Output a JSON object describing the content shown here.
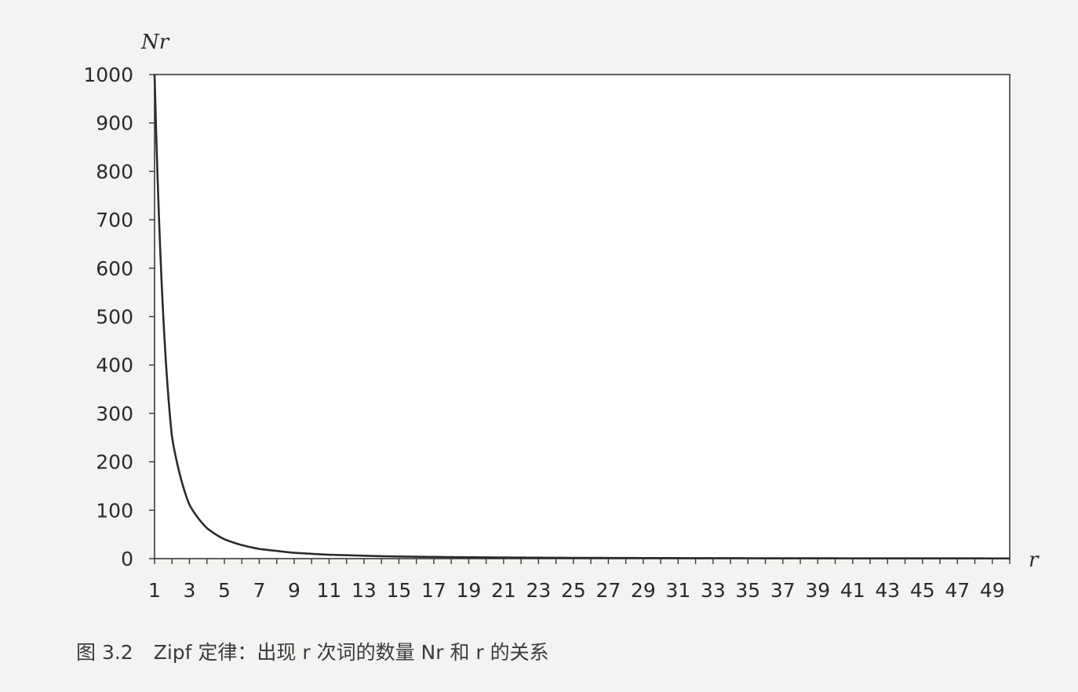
{
  "chart_data": {
    "type": "line",
    "title": "",
    "xlabel": "r",
    "ylabel": "Nr",
    "x": [
      1,
      2,
      3,
      4,
      5,
      6,
      7,
      8,
      9,
      10,
      11,
      12,
      13,
      14,
      15,
      16,
      17,
      18,
      19,
      20,
      21,
      22,
      23,
      24,
      25,
      26,
      27,
      28,
      29,
      30,
      31,
      32,
      33,
      34,
      35,
      36,
      37,
      38,
      39,
      40,
      41,
      42,
      43,
      44,
      45,
      46,
      47,
      48,
      49,
      50
    ],
    "series": [
      {
        "values": [
          1000,
          250,
          111,
          63,
          40,
          28,
          20,
          16,
          12,
          10,
          8,
          7,
          6,
          5,
          4.4,
          3.9,
          3.5,
          3.1,
          2.8,
          2.5,
          2.3,
          2.1,
          1.9,
          1.7,
          1.6,
          1.5,
          1.4,
          1.3,
          1.2,
          1.1,
          1.04,
          0.98,
          0.92,
          0.87,
          0.82,
          0.77,
          0.73,
          0.69,
          0.66,
          0.63,
          0.6,
          0.57,
          0.54,
          0.52,
          0.5,
          0.48,
          0.46,
          0.44,
          0.42,
          0.4
        ]
      }
    ],
    "xticks": [
      "1",
      "3",
      "5",
      "7",
      "9",
      "11",
      "13",
      "15",
      "17",
      "19",
      "21",
      "23",
      "25",
      "27",
      "29",
      "31",
      "33",
      "35",
      "37",
      "39",
      "41",
      "43",
      "45",
      "47",
      "49"
    ],
    "yticks": [
      "0",
      "100",
      "200",
      "300",
      "400",
      "500",
      "600",
      "700",
      "800",
      "900",
      "1000"
    ],
    "ylim": [
      0,
      1000
    ],
    "xlim": [
      1,
      50
    ],
    "grid": false,
    "line_color": "#2b2b2b",
    "axis_color": "#3a3a3a"
  },
  "caption": {
    "number": "图 3.2",
    "text": "Zipf 定律：出现 r 次词的数量 Nr 和 r 的关系"
  }
}
